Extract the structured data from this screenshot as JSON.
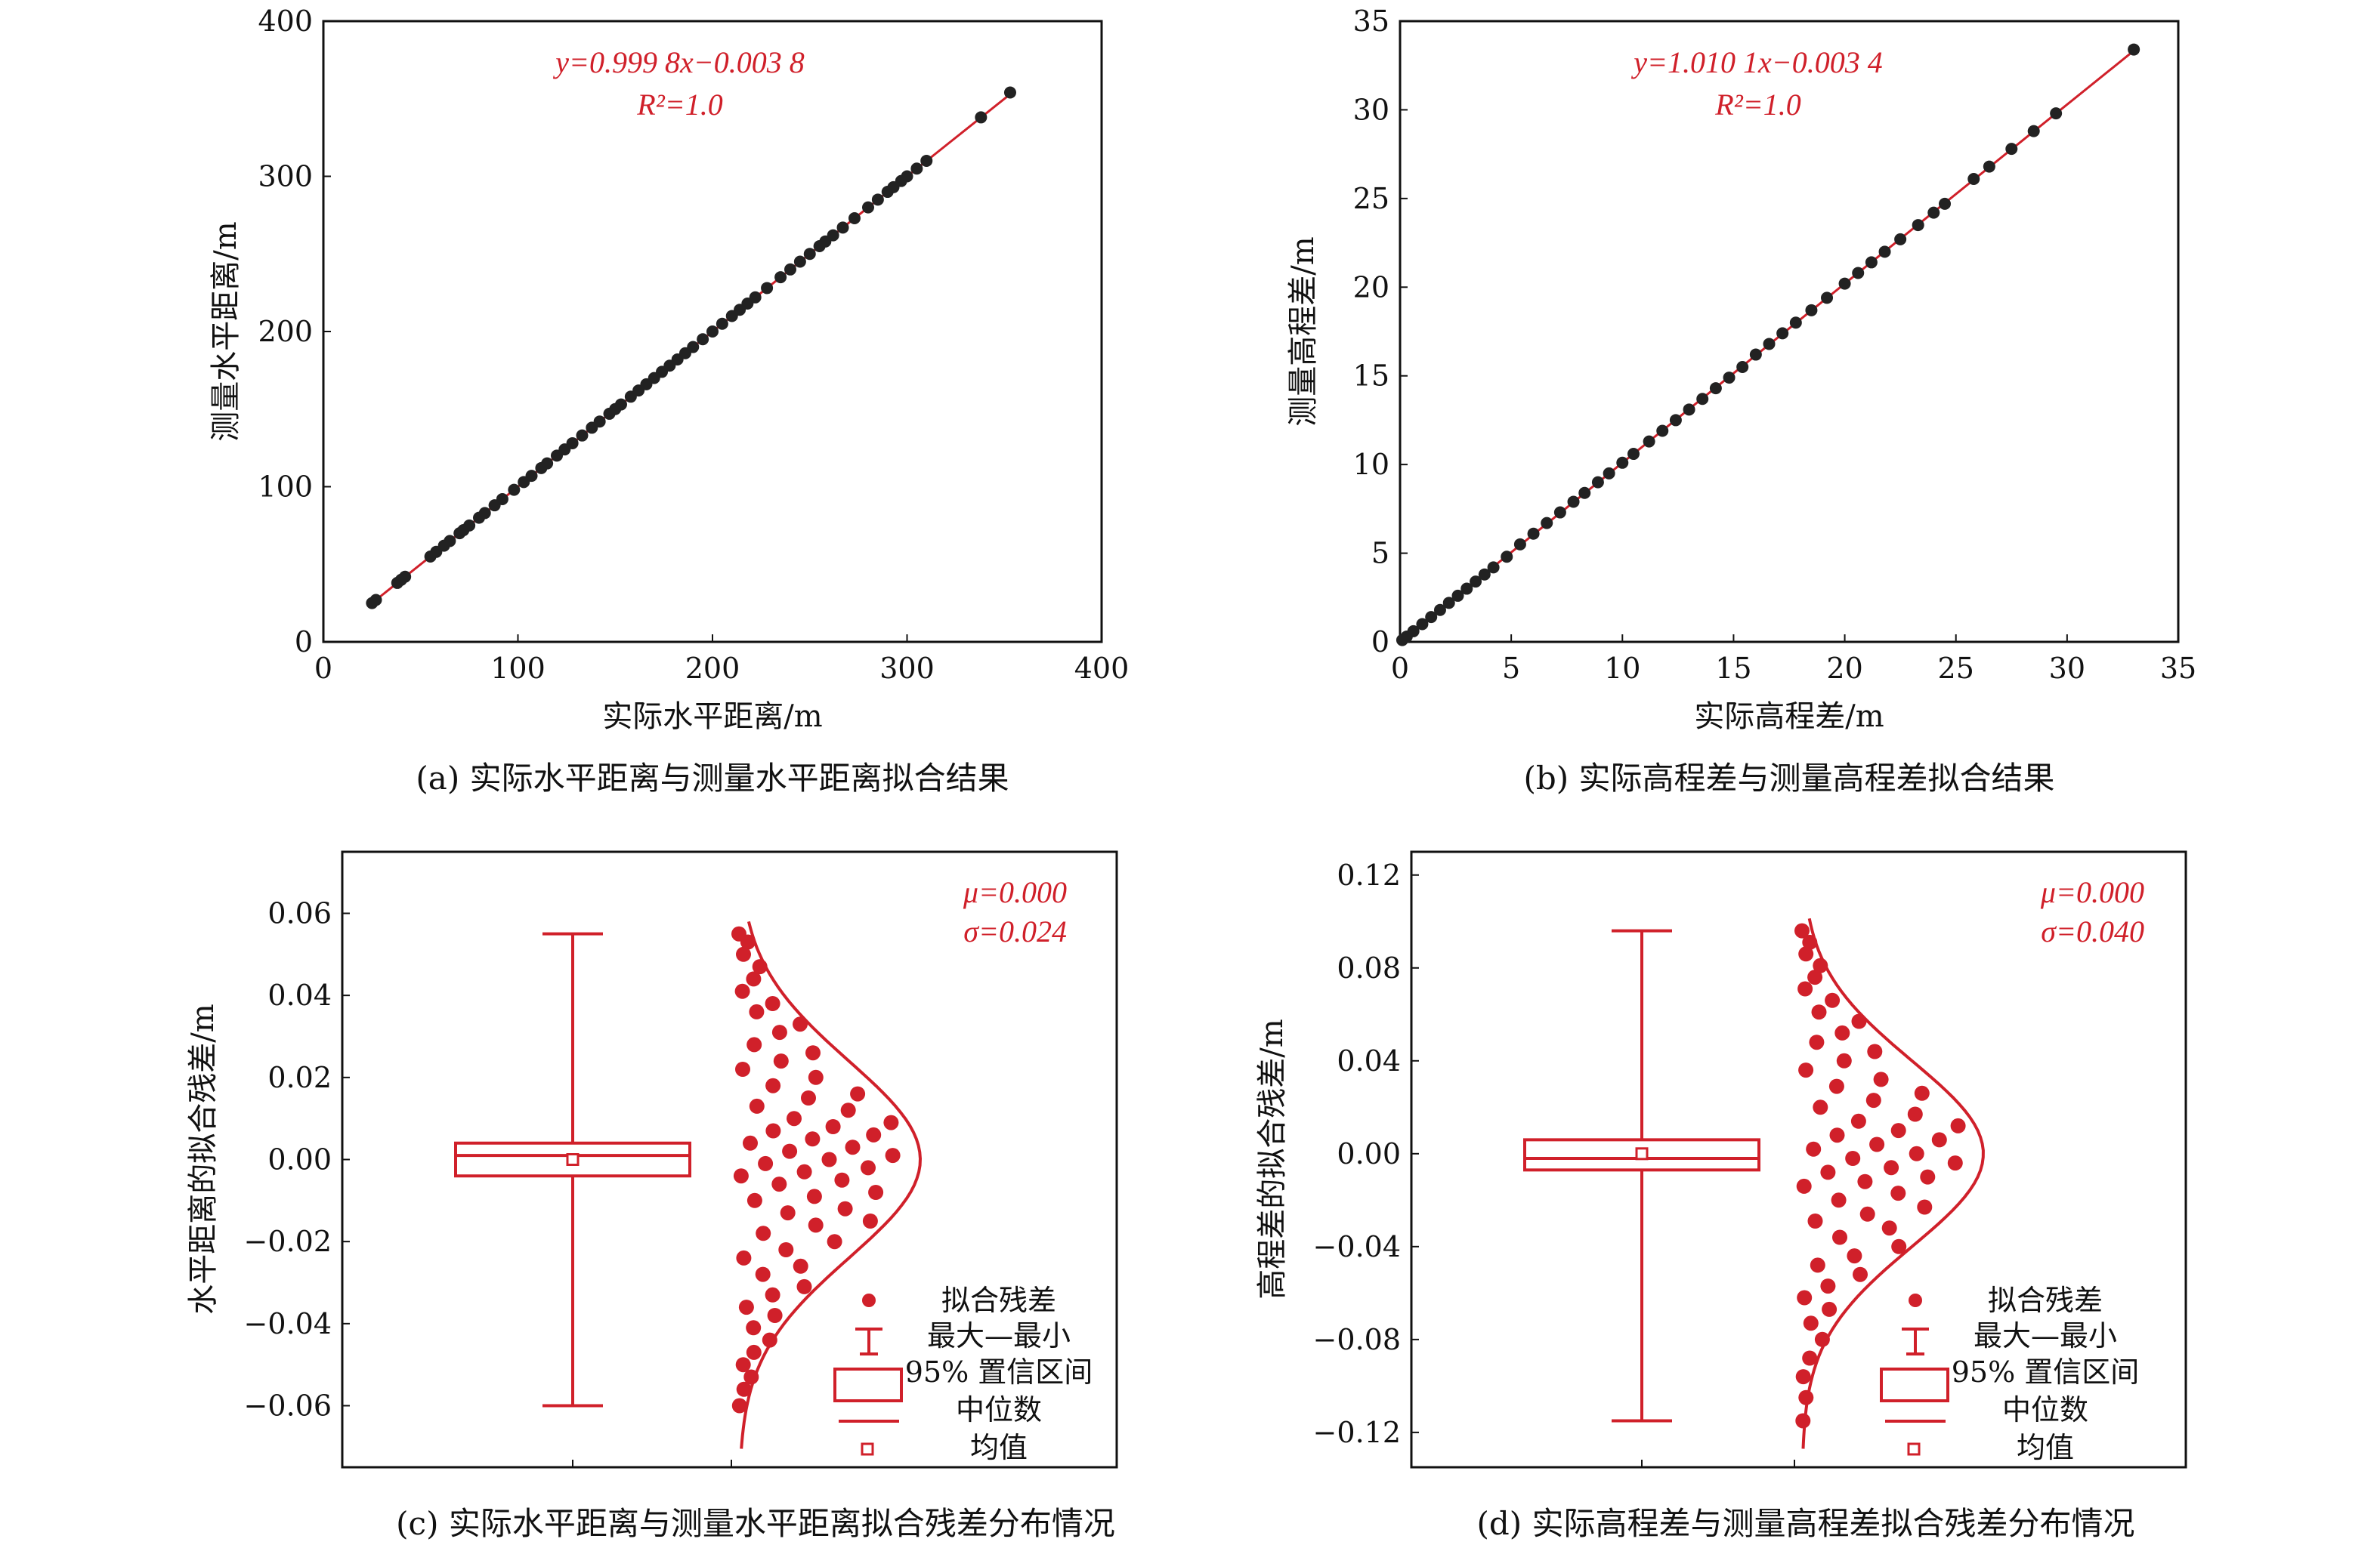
{
  "colors": {
    "accent": "#d0202a",
    "point": "#222222",
    "axis": "#111111"
  },
  "panels": {
    "a": {
      "caption": "(a) 实际水平距离与测量水平距离拟合结果",
      "xlabel": "实际水平距离/m",
      "ylabel": "测量水平距离/m",
      "eq": "y=0.999 8x−0.003 8",
      "r2": "R²=1.0"
    },
    "b": {
      "caption": "(b) 实际高程差与测量高程差拟合结果",
      "xlabel": "实际高程差/m",
      "ylabel": "测量高程差/m",
      "eq": "y=1.010 1x−0.003 4",
      "r2": "R²=1.0"
    },
    "c": {
      "caption": "(c) 实际水平距离与测量水平距离拟合残差分布情况",
      "ylabel": "水平距离的拟合残差/m",
      "mu": "μ=0.000",
      "sigma": "σ=0.024"
    },
    "d": {
      "caption": "(d) 实际高程差与测量高程差拟合残差分布情况",
      "ylabel": "高程差的拟合残差/m",
      "mu": "μ=0.000",
      "sigma": "σ=0.040"
    }
  },
  "legend": {
    "points": "拟合残差",
    "whisker": "最大—最小",
    "box": "95% 置信区间",
    "median": "中位数",
    "mean": "均值"
  },
  "chart_data": [
    {
      "type": "scatter",
      "xlabel": "实际水平距离/m",
      "ylabel": "测量水平距离/m",
      "xlim": [
        0,
        400
      ],
      "ylim": [
        0,
        400
      ],
      "xticks": [
        0,
        100,
        200,
        300,
        400
      ],
      "yticks": [
        0,
        100,
        200,
        300,
        400
      ],
      "fit": {
        "slope": 0.9998,
        "intercept": -0.0038,
        "r2": 1.0
      },
      "x": [
        25,
        27,
        38,
        40,
        42,
        55,
        58,
        62,
        65,
        70,
        72,
        75,
        80,
        83,
        88,
        92,
        98,
        103,
        107,
        112,
        115,
        120,
        124,
        128,
        133,
        138,
        142,
        147,
        150,
        153,
        158,
        162,
        166,
        170,
        174,
        178,
        182,
        186,
        190,
        195,
        200,
        205,
        210,
        214,
        218,
        222,
        228,
        235,
        240,
        245,
        250,
        255,
        258,
        262,
        267,
        273,
        280,
        285,
        290,
        293,
        297,
        300,
        305,
        310,
        338,
        353
      ],
      "y": [
        25,
        27,
        38,
        40,
        42,
        55,
        58,
        62,
        65,
        70,
        72,
        75,
        80,
        83,
        88,
        92,
        98,
        103,
        107,
        112,
        115,
        120,
        124,
        128,
        133,
        138,
        142,
        147,
        150,
        153,
        158,
        162,
        166,
        170,
        174,
        178,
        182,
        186,
        190,
        195,
        200,
        205,
        210,
        214,
        218,
        222,
        228,
        235,
        240,
        245,
        250,
        255,
        258,
        262,
        267,
        273,
        280,
        285,
        290,
        293,
        297,
        300,
        305,
        310,
        338,
        354
      ]
    },
    {
      "type": "scatter",
      "xlabel": "实际高程差/m",
      "ylabel": "测量高程差/m",
      "xlim": [
        0,
        35
      ],
      "ylim": [
        0,
        35
      ],
      "xticks": [
        0,
        5,
        10,
        15,
        20,
        25,
        30,
        35
      ],
      "yticks": [
        0,
        5,
        10,
        15,
        20,
        25,
        30,
        35
      ],
      "fit": {
        "slope": 1.0101,
        "intercept": -0.0034,
        "r2": 1.0
      },
      "x": [
        0.1,
        0.3,
        0.6,
        1.0,
        1.4,
        1.8,
        2.2,
        2.6,
        3.0,
        3.4,
        3.8,
        4.2,
        4.8,
        5.4,
        6.0,
        6.6,
        7.2,
        7.8,
        8.3,
        8.9,
        9.4,
        10.0,
        10.5,
        11.2,
        11.8,
        12.4,
        13.0,
        13.6,
        14.2,
        14.8,
        15.4,
        16.0,
        16.6,
        17.2,
        17.8,
        18.5,
        19.2,
        20.0,
        20.6,
        21.2,
        21.8,
        22.5,
        23.3,
        24.0,
        24.5,
        25.8,
        26.5,
        27.5,
        28.5,
        29.5,
        33.0
      ],
      "y": [
        0.1,
        0.3,
        0.6,
        1.0,
        1.4,
        1.8,
        2.2,
        2.6,
        3.0,
        3.4,
        3.8,
        4.2,
        4.8,
        5.5,
        6.1,
        6.7,
        7.3,
        7.9,
        8.4,
        9.0,
        9.5,
        10.1,
        10.6,
        11.3,
        11.9,
        12.5,
        13.1,
        13.7,
        14.3,
        14.9,
        15.5,
        16.2,
        16.8,
        17.4,
        18.0,
        18.7,
        19.4,
        20.2,
        20.8,
        21.4,
        22.0,
        22.7,
        23.5,
        24.2,
        24.7,
        26.1,
        26.8,
        27.8,
        28.8,
        29.8,
        33.4
      ]
    },
    {
      "type": "box",
      "ylabel": "水平距离的拟合残差/m",
      "ylim": [
        -0.075,
        0.075
      ],
      "yticks": [
        -0.06,
        -0.04,
        -0.02,
        0.0,
        0.02,
        0.04,
        0.06
      ],
      "whisker": [
        -0.06,
        0.055
      ],
      "box": [
        -0.004,
        0.004
      ],
      "median": 0.001,
      "mean": 0.0,
      "normal": {
        "mu": 0.0,
        "sigma": 0.024
      },
      "points": [
        0.055,
        0.053,
        0.05,
        0.047,
        0.044,
        0.041,
        0.038,
        0.036,
        0.033,
        0.031,
        0.028,
        0.026,
        0.024,
        0.022,
        0.02,
        0.018,
        0.016,
        0.015,
        0.013,
        0.012,
        0.01,
        0.009,
        0.008,
        0.007,
        0.006,
        0.005,
        0.004,
        0.003,
        0.002,
        0.001,
        0.0,
        -0.001,
        -0.002,
        -0.003,
        -0.004,
        -0.005,
        -0.006,
        -0.008,
        -0.009,
        -0.01,
        -0.012,
        -0.013,
        -0.015,
        -0.016,
        -0.018,
        -0.02,
        -0.022,
        -0.024,
        -0.026,
        -0.028,
        -0.031,
        -0.033,
        -0.036,
        -0.038,
        -0.041,
        -0.044,
        -0.047,
        -0.05,
        -0.053,
        -0.056,
        -0.06
      ]
    },
    {
      "type": "box",
      "ylabel": "高程差的拟合残差/m",
      "ylim": [
        -0.135,
        0.13
      ],
      "yticks": [
        -0.12,
        -0.08,
        -0.04,
        0.0,
        0.04,
        0.08,
        0.12
      ],
      "whisker": [
        -0.115,
        0.096
      ],
      "box": [
        -0.007,
        0.006
      ],
      "median": -0.002,
      "mean": 0.0,
      "normal": {
        "mu": 0.0,
        "sigma": 0.04
      },
      "points": [
        0.096,
        0.091,
        0.086,
        0.081,
        0.076,
        0.071,
        0.066,
        0.061,
        0.057,
        0.052,
        0.048,
        0.044,
        0.04,
        0.036,
        0.032,
        0.029,
        0.026,
        0.023,
        0.02,
        0.017,
        0.014,
        0.012,
        0.01,
        0.008,
        0.006,
        0.004,
        0.002,
        0.0,
        -0.002,
        -0.004,
        -0.006,
        -0.008,
        -0.01,
        -0.012,
        -0.014,
        -0.017,
        -0.02,
        -0.023,
        -0.026,
        -0.029,
        -0.032,
        -0.036,
        -0.04,
        -0.044,
        -0.048,
        -0.052,
        -0.057,
        -0.062,
        -0.067,
        -0.073,
        -0.08,
        -0.088,
        -0.096,
        -0.105,
        -0.115
      ]
    }
  ]
}
